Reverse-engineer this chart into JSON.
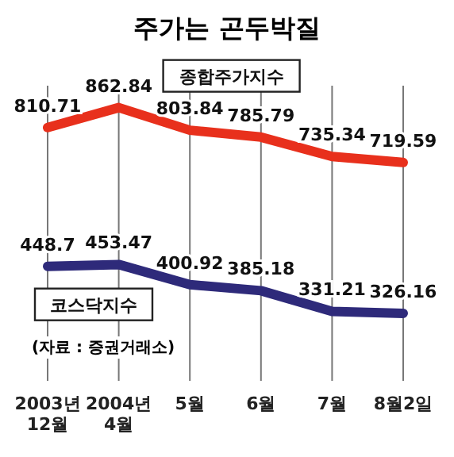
{
  "chart_data": {
    "type": "line",
    "title": "주가는 곤두박질",
    "categories": [
      "2003년 12월",
      "2004년 4월",
      "5월",
      "6월",
      "7월",
      "8월2일"
    ],
    "series": [
      {
        "name": "종합주가지수",
        "color": "#e8301c",
        "values": [
          810.71,
          862.84,
          803.84,
          785.79,
          735.34,
          719.59
        ]
      },
      {
        "name": "코스닥지수",
        "color": "#2e2a7a",
        "values": [
          448.7,
          453.47,
          400.92,
          385.18,
          331.21,
          326.16
        ]
      }
    ],
    "ylim": [
      150,
      920
    ],
    "tick_labels": "x",
    "data_labels": true,
    "grid": "x",
    "legend": false,
    "marker": "none",
    "annotations": [
      "(자료 : 증권거래소)"
    ]
  }
}
